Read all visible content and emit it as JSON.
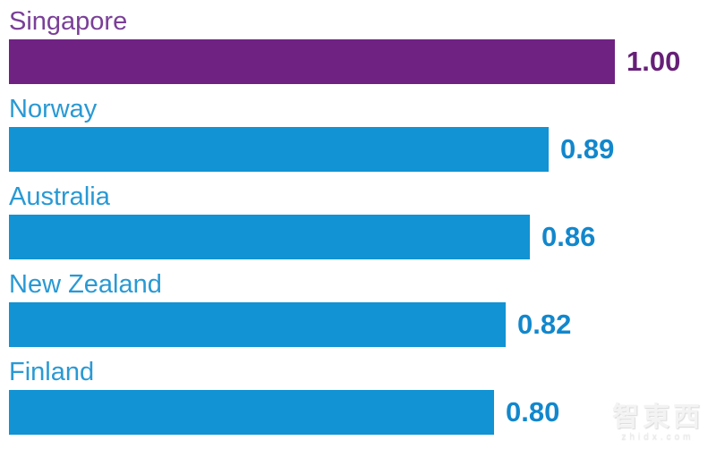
{
  "chart_data": {
    "type": "bar",
    "orientation": "horizontal",
    "title": "",
    "xlabel": "",
    "ylabel": "",
    "xlim": [
      0,
      1
    ],
    "grid": false,
    "legend": false,
    "categories": [
      "Singapore",
      "Norway",
      "Australia",
      "New Zealand",
      "Finland"
    ],
    "values": [
      1.0,
      0.89,
      0.86,
      0.82,
      0.8
    ],
    "value_labels": [
      "1.00",
      "0.89",
      "0.86",
      "0.82",
      "0.80"
    ],
    "highlight_index": 0,
    "colors": {
      "highlight_bar": "#6F2282",
      "highlight_label": "#7A3F98",
      "highlight_value": "#662077",
      "bar": "#1193D4",
      "label": "#2999D4",
      "value": "#1287CC"
    }
  },
  "watermark": {
    "logo_text": "智東西",
    "url_text": "zhidx.com"
  }
}
